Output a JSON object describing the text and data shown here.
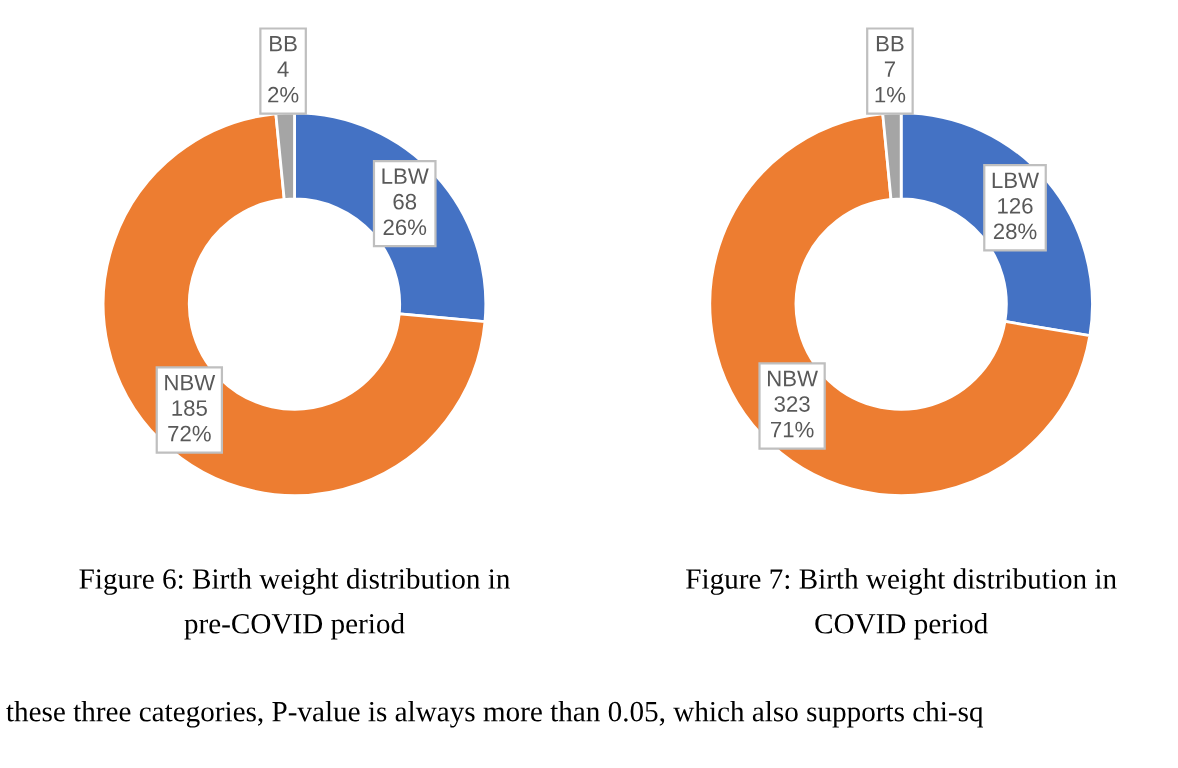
{
  "chart_data": [
    {
      "type": "donut",
      "title": "Figure 6: Birth weight distribution in\npre-COVID period",
      "categories": [
        "LBW",
        "NBW",
        "BB"
      ],
      "values": [
        68,
        185,
        4
      ],
      "value_labels": [
        "68\n26%",
        "185\n72%",
        "4\n2%"
      ],
      "colors": [
        "#4472c4",
        "#ed7d31",
        "#a5a5a5"
      ],
      "annotations": [
        "these three categories, P-value is always more than 0.05, which also supports chi-sq"
      ]
    },
    {
      "type": "donut",
      "title": "Figure 7: Birth weight distribution in\nCOVID period",
      "categories": [
        "LBW",
        "NBW",
        "BB"
      ],
      "values": [
        126,
        323,
        7
      ],
      "value_labels": [
        "126\n28%",
        "323\n71%",
        "7\n1%"
      ],
      "colors": [
        "#4472c4",
        "#ed7d31",
        "#a5a5a5"
      ]
    }
  ]
}
